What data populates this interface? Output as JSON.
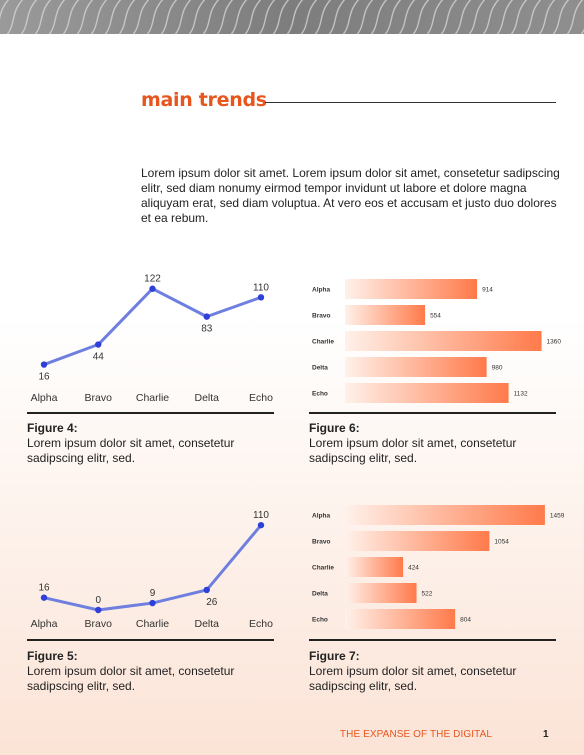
{
  "page": {
    "heading": "main trends",
    "intro": "Lorem ipsum dolor sit amet. Lorem ipsum dolor sit amet, consetetur sadipscing elitr, sed diam nonumy eirmod tempor invidunt ut labore et dolore magna aliquyam erat, sed diam voluptua. At vero eos et accusam et justo duo dolores et ea rebum.",
    "footer": "THE EXPANSE OF THE DIGITAL",
    "page_number": "1"
  },
  "colors": {
    "accent": "#e8561e",
    "line": "#6f7fe0",
    "point": "#2f40d8",
    "bar_start": "#fff1ea",
    "bar_end": "#ff7a4a"
  },
  "captions": {
    "fig4": {
      "label": "Figure 4:",
      "text": "Lorem ipsum dolor sit amet, consetetur sadipscing elitr, sed."
    },
    "fig5": {
      "label": "Figure 5:",
      "text": "Lorem ipsum dolor sit amet, consetetur sadipscing elitr, sed."
    },
    "fig6": {
      "label": "Figure 6:",
      "text": "Lorem ipsum dolor sit amet, consetetur sadipscing elitr, sed."
    },
    "fig7": {
      "label": "Figure 7:",
      "text": "Lorem ipsum dolor sit amet, consetetur sadipscing elitr, sed."
    }
  },
  "chart_data": [
    {
      "id": "fig4",
      "type": "line",
      "categories": [
        "Alpha",
        "Bravo",
        "Charlie",
        "Delta",
        "Echo"
      ],
      "values": [
        16,
        44,
        122,
        83,
        110
      ],
      "ylim": [
        0,
        130
      ],
      "grid": false,
      "legend": "none"
    },
    {
      "id": "fig6",
      "type": "bar",
      "orientation": "horizontal",
      "categories": [
        "Alpha",
        "Bravo",
        "Charlie",
        "Delta",
        "Echo"
      ],
      "values": [
        914,
        554,
        1360,
        980,
        1132
      ],
      "xlim": [
        0,
        1460
      ],
      "grid": false,
      "legend": "none"
    },
    {
      "id": "fig5",
      "type": "line",
      "categories": [
        "Alpha",
        "Bravo",
        "Charlie",
        "Delta",
        "Echo"
      ],
      "values": [
        16,
        0,
        9,
        26,
        110
      ],
      "ylim": [
        0,
        118
      ],
      "grid": false,
      "legend": "none"
    },
    {
      "id": "fig7",
      "type": "bar",
      "orientation": "horizontal",
      "categories": [
        "Alpha",
        "Bravo",
        "Charlie",
        "Delta",
        "Echo"
      ],
      "values": [
        1459,
        1054,
        424,
        522,
        804
      ],
      "xlim": [
        0,
        1540
      ],
      "grid": false,
      "legend": "none"
    }
  ]
}
